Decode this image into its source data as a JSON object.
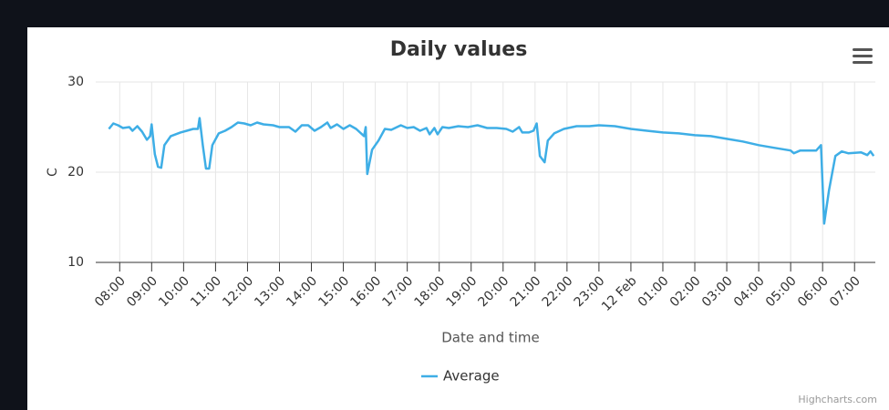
{
  "chart_data": {
    "type": "line",
    "title": "Daily values",
    "xlabel": "Date and time",
    "ylabel": "C",
    "credits": "Highcharts.com",
    "x": [
      7.66,
      7.8,
      7.95,
      8.1,
      8.3,
      8.4,
      8.55,
      8.7,
      8.85,
      8.95,
      9.0,
      9.1,
      9.2,
      9.3,
      9.4,
      9.6,
      9.9,
      10.1,
      10.3,
      10.45,
      10.5,
      10.6,
      10.7,
      10.8,
      10.9,
      11.1,
      11.3,
      11.5,
      11.7,
      11.9,
      12.1,
      12.3,
      12.5,
      12.8,
      13.0,
      13.3,
      13.5,
      13.7,
      13.9,
      14.1,
      14.3,
      14.5,
      14.6,
      14.8,
      15.0,
      15.2,
      15.4,
      15.65,
      15.7,
      15.75,
      15.9,
      16.1,
      16.3,
      16.5,
      16.8,
      17.0,
      17.2,
      17.4,
      17.6,
      17.7,
      17.85,
      17.95,
      18.1,
      18.3,
      18.6,
      18.9,
      19.2,
      19.5,
      19.8,
      20.1,
      20.3,
      20.5,
      20.6,
      20.8,
      20.95,
      21.05,
      21.15,
      21.3,
      21.4,
      21.6,
      21.9,
      22.3,
      22.7,
      23.0,
      23.5,
      24.0,
      24.5,
      25.0,
      25.5,
      26.0,
      26.5,
      27.0,
      27.5,
      28.0,
      28.5,
      29.0,
      29.1,
      29.3,
      29.8,
      29.95,
      30.05,
      30.2,
      30.4,
      30.6,
      30.8,
      31.2,
      31.4,
      31.5,
      31.6
    ],
    "series": [
      {
        "name": "Average",
        "color": "#3eaee6",
        "values": [
          24.8,
          25.4,
          25.2,
          24.9,
          25.0,
          24.6,
          25.1,
          24.5,
          23.6,
          24.0,
          25.3,
          22.0,
          20.6,
          20.5,
          23.0,
          24.0,
          24.4,
          24.6,
          24.8,
          24.8,
          26.0,
          23.0,
          20.4,
          20.4,
          23.0,
          24.3,
          24.6,
          25.0,
          25.5,
          25.4,
          25.2,
          25.5,
          25.3,
          25.2,
          25.0,
          25.0,
          24.5,
          25.2,
          25.2,
          24.6,
          25.0,
          25.5,
          24.9,
          25.3,
          24.8,
          25.2,
          24.8,
          24.0,
          25.0,
          19.8,
          22.5,
          23.5,
          24.8,
          24.7,
          25.2,
          24.9,
          25.0,
          24.6,
          24.9,
          24.2,
          24.9,
          24.2,
          25.0,
          24.9,
          25.1,
          25.0,
          25.2,
          24.9,
          24.9,
          24.8,
          24.5,
          25.0,
          24.4,
          24.4,
          24.6,
          25.4,
          21.8,
          21.1,
          23.5,
          24.3,
          24.8,
          25.1,
          25.1,
          25.2,
          25.1,
          24.8,
          24.6,
          24.4,
          24.3,
          24.1,
          24.0,
          23.7,
          23.4,
          23.0,
          22.7,
          22.4,
          22.1,
          22.4,
          22.4,
          23.0,
          14.3,
          18.0,
          21.8,
          22.3,
          22.1,
          22.2,
          21.9,
          22.3,
          21.8
        ]
      }
    ],
    "xlim": [
      7.25,
      31.65
    ],
    "xticks": [
      {
        "value": 8,
        "label": "08:00"
      },
      {
        "value": 9,
        "label": "09:00"
      },
      {
        "value": 10,
        "label": "10:00"
      },
      {
        "value": 11,
        "label": "11:00"
      },
      {
        "value": 12,
        "label": "12:00"
      },
      {
        "value": 13,
        "label": "13:00"
      },
      {
        "value": 14,
        "label": "14:00"
      },
      {
        "value": 15,
        "label": "15:00"
      },
      {
        "value": 16,
        "label": "16:00"
      },
      {
        "value": 17,
        "label": "17:00"
      },
      {
        "value": 18,
        "label": "18:00"
      },
      {
        "value": 19,
        "label": "19:00"
      },
      {
        "value": 20,
        "label": "20:00"
      },
      {
        "value": 21,
        "label": "21:00"
      },
      {
        "value": 22,
        "label": "22:00"
      },
      {
        "value": 23,
        "label": "23:00"
      },
      {
        "value": 24,
        "label": "12 Feb"
      },
      {
        "value": 25,
        "label": "01:00"
      },
      {
        "value": 26,
        "label": "02:00"
      },
      {
        "value": 27,
        "label": "03:00"
      },
      {
        "value": 28,
        "label": "04:00"
      },
      {
        "value": 29,
        "label": "05:00"
      },
      {
        "value": 30,
        "label": "06:00"
      },
      {
        "value": 31,
        "label": "07:00"
      }
    ],
    "ylim": [
      10,
      30
    ],
    "yticks": [
      10,
      20,
      30
    ],
    "grid": true,
    "legend": "bottom"
  }
}
